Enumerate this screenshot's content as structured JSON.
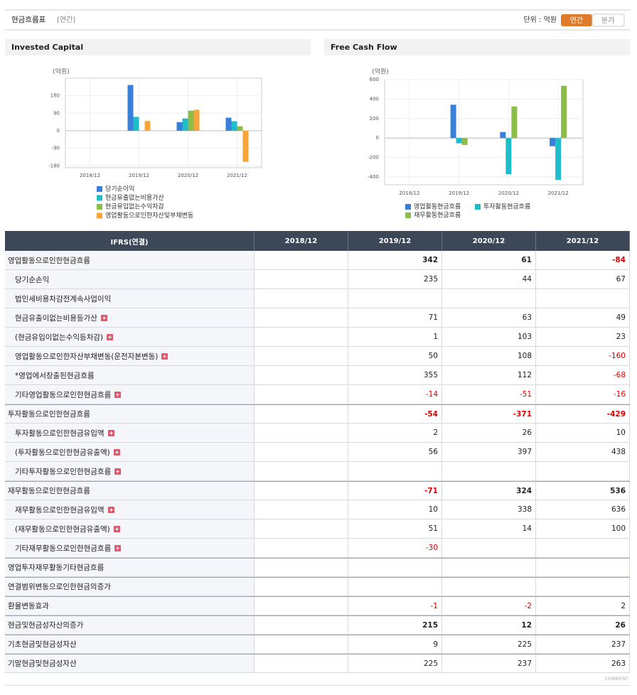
{
  "header": {
    "title": "현금흐름표",
    "period": "[연간]",
    "unit": "단위 : 억원",
    "buttons": [
      "연간",
      "분기"
    ]
  },
  "chart_data": [
    {
      "type": "bar",
      "title": "Invested Capital",
      "ylabel": "(억원)",
      "categories": [
        "2018/12",
        "2019/12",
        "2020/12",
        "2021/12"
      ],
      "series": [
        {
          "name": "당기순이익",
          "color": "#3a7fd8",
          "values": [
            null,
            235,
            44,
            67
          ]
        },
        {
          "name": "현금유출없는비용가산",
          "color": "#1fbccc",
          "values": [
            null,
            71,
            63,
            49
          ]
        },
        {
          "name": "현금유입없는수익차감",
          "color": "#8cbd4a",
          "values": [
            null,
            1,
            103,
            23
          ]
        },
        {
          "name": "영업활동으로인한자산및부채변동",
          "color": "#f8a43a",
          "values": [
            null,
            50,
            108,
            -160
          ]
        }
      ],
      "ylim": [
        -190,
        270
      ],
      "yticks": [
        -180,
        -90,
        0,
        90,
        180
      ],
      "grid": true,
      "legend": "bottom"
    },
    {
      "type": "bar",
      "title": "Free Cash Flow",
      "ylabel": "(억원)",
      "categories": [
        "2018/12",
        "2019/12",
        "2020/12",
        "2021/12"
      ],
      "series": [
        {
          "name": "영업활동현금흐름",
          "color": "#3a7fd8",
          "values": [
            null,
            342,
            61,
            -84
          ]
        },
        {
          "name": "투자활동현금흐름",
          "color": "#1fbccc",
          "values": [
            null,
            -54,
            -371,
            -429
          ]
        },
        {
          "name": "재무활동현금흐름",
          "color": "#8cbd4a",
          "values": [
            null,
            -71,
            324,
            536
          ]
        }
      ],
      "ylim": [
        -480,
        600
      ],
      "yticks": [
        -400,
        -200,
        0,
        200,
        400,
        600
      ],
      "grid": true,
      "legend": "bottom"
    }
  ],
  "table": {
    "columns": [
      "IFRS(연결)",
      "2018/12",
      "2019/12",
      "2020/12",
      "2021/12"
    ],
    "rows": [
      {
        "name": "영업활동으로인한현금흐름",
        "level": 0,
        "bold": true,
        "expandable": false,
        "values": [
          null,
          342,
          61,
          -84
        ]
      },
      {
        "name": "당기순손익",
        "level": 1,
        "bold": false,
        "expandable": false,
        "values": [
          null,
          235,
          44,
          67
        ]
      },
      {
        "name": "법인세비용차감전계속사업이익",
        "level": 1,
        "bold": false,
        "expandable": false,
        "values": [
          null,
          null,
          null,
          null
        ]
      },
      {
        "name": "현금유출이없는비용등가산",
        "level": 1,
        "bold": false,
        "expandable": true,
        "values": [
          null,
          71,
          63,
          49
        ]
      },
      {
        "name": "(현금유입이없는수익등차감)",
        "level": 1,
        "bold": false,
        "expandable": true,
        "values": [
          null,
          1,
          103,
          23
        ]
      },
      {
        "name": "영업활동으로인한자산부채변동(운전자본변동)",
        "level": 1,
        "bold": false,
        "expandable": true,
        "values": [
          null,
          50,
          108,
          -160
        ]
      },
      {
        "name": "*영업에서창출된현금흐름",
        "level": 1,
        "bold": false,
        "expandable": false,
        "values": [
          null,
          355,
          112,
          -68
        ]
      },
      {
        "name": "기타영업활동으로인한현금흐름",
        "level": 1,
        "bold": false,
        "expandable": true,
        "values": [
          null,
          -14,
          -51,
          -16
        ]
      },
      {
        "name": "투자활동으로인한현금흐름",
        "level": 0,
        "bold": true,
        "expandable": false,
        "values": [
          null,
          -54,
          -371,
          -429
        ]
      },
      {
        "name": "투자활동으로인한현금유입액",
        "level": 1,
        "bold": false,
        "expandable": true,
        "values": [
          null,
          2,
          26,
          10
        ]
      },
      {
        "name": "(투자활동으로인한현금유출액)",
        "level": 1,
        "bold": false,
        "expandable": true,
        "values": [
          null,
          56,
          397,
          438
        ]
      },
      {
        "name": "기타투자활동으로인한현금흐름",
        "level": 1,
        "bold": false,
        "expandable": true,
        "values": [
          null,
          null,
          null,
          null
        ]
      },
      {
        "name": "재무활동으로인한현금흐름",
        "level": 0,
        "bold": true,
        "expandable": false,
        "values": [
          null,
          -71,
          324,
          536
        ]
      },
      {
        "name": "재무활동으로인한현금유입액",
        "level": 1,
        "bold": false,
        "expandable": true,
        "values": [
          null,
          10,
          338,
          636
        ]
      },
      {
        "name": "(재무활동으로인한현금유출액)",
        "level": 1,
        "bold": false,
        "expandable": true,
        "values": [
          null,
          51,
          14,
          100
        ]
      },
      {
        "name": "기타재무활동으로인한현금흐름",
        "level": 1,
        "bold": false,
        "expandable": true,
        "values": [
          null,
          -30,
          null,
          null
        ]
      },
      {
        "name": "영업투자재무활동기타현금흐름",
        "level": 0,
        "bold": false,
        "expandable": false,
        "values": [
          null,
          null,
          null,
          null
        ]
      },
      {
        "name": "연결범위변동으로인한현금의증가",
        "level": 0,
        "bold": false,
        "expandable": false,
        "values": [
          null,
          null,
          null,
          null
        ]
      },
      {
        "name": "환율변동효과",
        "level": 0,
        "bold": false,
        "expandable": false,
        "values": [
          null,
          -1,
          -2,
          2
        ]
      },
      {
        "name": "현금및현금성자산의증가",
        "level": 0,
        "bold": true,
        "expandable": false,
        "values": [
          null,
          215,
          12,
          26
        ]
      },
      {
        "name": "기초현금및현금성자산",
        "level": 0,
        "bold": false,
        "expandable": false,
        "values": [
          null,
          9,
          225,
          237
        ]
      },
      {
        "name": "기말현금및현금성자산",
        "level": 0,
        "bold": false,
        "expandable": false,
        "values": [
          null,
          225,
          237,
          263
        ]
      }
    ]
  },
  "footer": "COMMENT"
}
